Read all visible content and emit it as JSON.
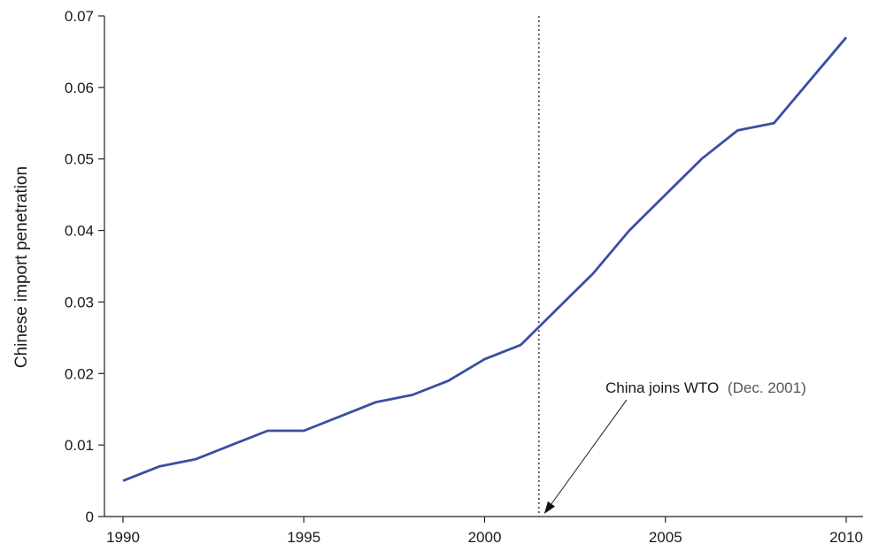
{
  "chart_data": {
    "type": "line",
    "title": "",
    "xlabel": "",
    "ylabel": "Chinese import penetration",
    "xlim": [
      1990,
      2010
    ],
    "ylim": [
      0,
      0.07
    ],
    "x_ticks": [
      1990,
      1995,
      2000,
      2005,
      2010
    ],
    "y_ticks": [
      0,
      0.01,
      0.02,
      0.03,
      0.04,
      0.05,
      0.06,
      0.07
    ],
    "y_tick_labels": [
      "0",
      "0.01",
      "0.02",
      "0.03",
      "0.04",
      "0.05",
      "0.06",
      "0.07"
    ],
    "grid": false,
    "legend": "none",
    "series": [
      {
        "color": "#3a4fa3",
        "x": [
          1990,
          1991,
          1992,
          1993,
          1994,
          1995,
          1996,
          1997,
          1998,
          1999,
          2000,
          2001,
          2002,
          2003,
          2004,
          2005,
          2006,
          2007,
          2008,
          2009,
          2010
        ],
        "y": [
          0.005,
          0.007,
          0.008,
          0.01,
          0.012,
          0.012,
          0.014,
          0.016,
          0.017,
          0.019,
          0.022,
          0.024,
          0.029,
          0.034,
          0.04,
          0.045,
          0.05,
          0.054,
          0.055,
          0.061,
          0.067
        ]
      }
    ],
    "event": {
      "x": 2001.5,
      "label_main": "China joins WTO",
      "label_date": "(Dec. 2001)"
    }
  }
}
